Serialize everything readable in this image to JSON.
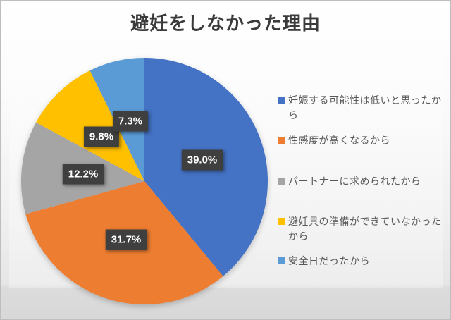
{
  "title": "避妊をしなかった理由",
  "chart_data": {
    "type": "pie",
    "title": "避妊をしなかった理由",
    "categories": [
      "妊娠する可能性は低いと思ったから",
      "性感度が高くなるから",
      "パートナーに求められたから",
      "避妊具の準備ができていなかったから",
      "安全日だったから"
    ],
    "values": [
      39.0,
      31.7,
      12.2,
      9.8,
      7.3
    ],
    "unit": "%",
    "data_labels": [
      "39.0%",
      "31.7%",
      "12.2%",
      "9.8%",
      "7.3%"
    ],
    "colors": [
      "#4472C4",
      "#ED7D31",
      "#A5A5A5",
      "#FFC000",
      "#5B9BD5"
    ],
    "start_angle_deg": 0,
    "direction": "clockwise",
    "legend_position": "right",
    "label_style": {
      "box_color": "#3F3F3F",
      "text_color": "#FFFFFF"
    }
  }
}
